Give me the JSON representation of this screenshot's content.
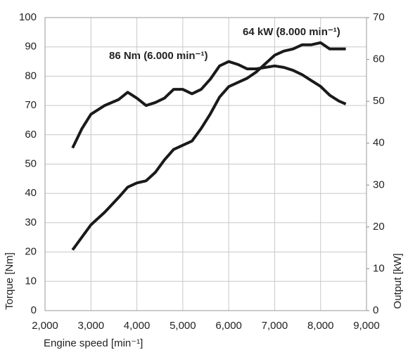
{
  "chart_data": {
    "type": "line",
    "annotations": [
      "86 Nm (6.000 min⁻¹)",
      "64 kW (8.000 min⁻¹)"
    ],
    "x_label": "Engine speed [min⁻¹]",
    "y_label": "Torque [Nm]",
    "y2_label": "Output [kW]",
    "x": [
      2600,
      2800,
      3000,
      3300,
      3600,
      3800,
      4000,
      4200,
      4400,
      4600,
      4800,
      5000,
      5200,
      5400,
      5600,
      5800,
      6000,
      6200,
      6400,
      6600,
      6800,
      7000,
      7200,
      7400,
      7600,
      7800,
      8000,
      8200,
      8400,
      8550
    ],
    "series": [
      {
        "name": "Torque",
        "color": "#1a1a1a",
        "values": [
          55.5,
          62,
          67,
          70,
          72,
          74.5,
          72.5,
          70,
          71,
          72.5,
          75.5,
          75.5,
          74,
          75.5,
          79,
          83.5,
          85,
          84,
          82.5,
          82.5,
          83,
          83.5,
          83,
          82,
          80.5,
          78.5,
          76.5,
          73.5,
          71.5,
          70.5
        ]
      },
      {
        "name": "Output",
        "color": "#1a1a1a",
        "axis": "y2",
        "values": [
          14.5,
          17.5,
          20.5,
          23.5,
          27,
          29.5,
          30.5,
          31,
          33,
          36,
          38.5,
          39.5,
          40.5,
          43.5,
          47,
          51,
          53.5,
          54.5,
          55.5,
          57,
          59,
          61,
          62,
          62.5,
          63.5,
          63.5,
          64,
          62.5,
          62.5,
          62.5
        ]
      }
    ],
    "xlim": [
      2000,
      9000
    ],
    "xticks": [
      {
        "value": 2000,
        "label": "2,000"
      },
      {
        "value": 3000,
        "label": "3,000"
      },
      {
        "value": 4000,
        "label": "4,000"
      },
      {
        "value": 5000,
        "label": "5,000"
      },
      {
        "value": 6000,
        "label": "6,000"
      },
      {
        "value": 7000,
        "label": "7,000"
      },
      {
        "value": 8000,
        "label": "8,000"
      },
      {
        "value": 9000,
        "label": "9,000"
      }
    ],
    "ylim": [
      0,
      100
    ],
    "yticks": [
      0,
      10,
      20,
      30,
      40,
      50,
      60,
      70,
      80,
      90,
      100
    ],
    "y2lim": [
      0,
      70
    ],
    "y2ticks": [
      0,
      10,
      20,
      30,
      40,
      50,
      60,
      70
    ],
    "grid": true
  }
}
